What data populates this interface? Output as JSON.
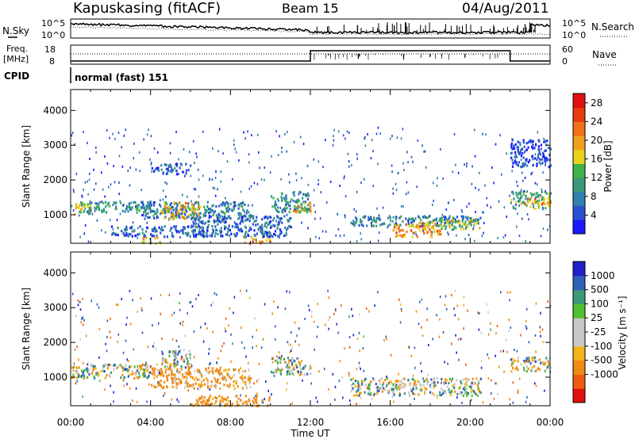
{
  "header": {
    "site": "Kapuskasing (fitACF)",
    "beam": "Beam 15",
    "date": "04/Aug/2011"
  },
  "noise_panel": {
    "left_label": "N.Sky",
    "right_label": "N.Search",
    "left_ticks": [
      "10^5",
      "10^0"
    ],
    "right_ticks": [
      "10^5",
      "10^0"
    ]
  },
  "freq_panel": {
    "left_label_1": "Freq.",
    "left_label_2": "[MHz]",
    "right_label": "Nave",
    "left_ticks": [
      "18",
      "8"
    ],
    "right_ticks": [
      "60",
      "0"
    ]
  },
  "cpid": {
    "label": "CPID",
    "mode": "normal (fast) 151"
  },
  "colors": {
    "power_scale": [
      "#1a1aff",
      "#2a4fd0",
      "#2f7fb0",
      "#3a9a7a",
      "#3fb24a",
      "#e8d21a",
      "#f0a020",
      "#f07018",
      "#e83c10",
      "#e01010"
    ],
    "velocity_scale": [
      "#e01010",
      "#ee5a10",
      "#f08a14",
      "#f2b41a",
      "#c8c8c8",
      "#c8c8c8",
      "#50c030",
      "#3a9a7a",
      "#2f5fb8",
      "#2020c8"
    ]
  },
  "chart_data": [
    {
      "type": "heatmap",
      "parameter": "Power",
      "ylabel": "Slant Range [km]",
      "xlabel": "Time UT",
      "x_ticks": [
        "00:00",
        "04:00",
        "08:00",
        "12:00",
        "16:00",
        "20:00",
        "00:00"
      ],
      "y_ticks": [
        "1000",
        "2000",
        "3000",
        "4000"
      ],
      "xlim": [
        0,
        24
      ],
      "ylim": [
        180,
        4600
      ],
      "colorbar": {
        "label": "Power [dB]",
        "ticks": [
          "4",
          "8",
          "12",
          "16",
          "20",
          "24",
          "28"
        ],
        "range": [
          0,
          30
        ]
      },
      "regions": [
        {
          "t0": 0.0,
          "t1": 1.0,
          "r0": 1000,
          "r1": 1400,
          "level": 16
        },
        {
          "t0": 0.5,
          "t1": 4.0,
          "r0": 1100,
          "r1": 1400,
          "level": 10
        },
        {
          "t0": 3.5,
          "t1": 9.0,
          "r0": 900,
          "r1": 1400,
          "level": 8
        },
        {
          "t0": 4.5,
          "t1": 6.5,
          "r0": 900,
          "r1": 1400,
          "level": 18
        },
        {
          "t0": 2.0,
          "t1": 7.5,
          "r0": 400,
          "r1": 700,
          "level": 6
        },
        {
          "t0": 3.5,
          "t1": 4.5,
          "r0": 200,
          "r1": 400,
          "level": 18
        },
        {
          "t0": 8.5,
          "t1": 10.0,
          "r0": 200,
          "r1": 400,
          "level": 22
        },
        {
          "t0": 6.0,
          "t1": 11.0,
          "r0": 400,
          "r1": 1000,
          "level": 6
        },
        {
          "t0": 10.0,
          "t1": 12.0,
          "r0": 1100,
          "r1": 1700,
          "level": 10
        },
        {
          "t0": 11.0,
          "t1": 12.0,
          "r0": 1100,
          "r1": 1400,
          "level": 18
        },
        {
          "t0": 4.0,
          "t1": 6.0,
          "r0": 2200,
          "r1": 2500,
          "level": 5
        },
        {
          "t0": 14.0,
          "t1": 20.5,
          "r0": 700,
          "r1": 1000,
          "level": 8
        },
        {
          "t0": 16.0,
          "t1": 18.5,
          "r0": 400,
          "r1": 800,
          "level": 20
        },
        {
          "t0": 18.0,
          "t1": 20.5,
          "r0": 600,
          "r1": 900,
          "level": 14
        },
        {
          "t0": 22.0,
          "t1": 24.0,
          "r0": 1200,
          "r1": 1700,
          "level": 12
        },
        {
          "t0": 22.5,
          "t1": 24.0,
          "r0": 1300,
          "r1": 1500,
          "level": 20
        },
        {
          "t0": 22.0,
          "t1": 24.0,
          "r0": 2400,
          "r1": 3200,
          "level": 4
        }
      ]
    },
    {
      "type": "heatmap",
      "parameter": "Velocity",
      "ylabel": "Slant Range [km]",
      "xlabel": "Time UT",
      "x_ticks": [
        "00:00",
        "04:00",
        "08:00",
        "12:00",
        "16:00",
        "20:00",
        "00:00"
      ],
      "y_ticks": [
        "1000",
        "2000",
        "3000",
        "4000"
      ],
      "xlim": [
        0,
        24
      ],
      "ylim": [
        180,
        4600
      ],
      "colorbar": {
        "label": "Velocity [m s⁻¹]",
        "ticks": [
          "1000",
          "500",
          "100",
          "25",
          "-25",
          "-100",
          "-500",
          "-1000"
        ]
      },
      "regions": [
        {
          "t0": 0.0,
          "t1": 4.0,
          "r0": 1000,
          "r1": 1400,
          "vel": 0
        },
        {
          "t0": 4.0,
          "t1": 9.0,
          "r0": 700,
          "r1": 1300,
          "vel": -150
        },
        {
          "t0": 4.5,
          "t1": 6.0,
          "r0": 1300,
          "r1": 1800,
          "vel": 0
        },
        {
          "t0": 6.0,
          "t1": 10.0,
          "r0": 200,
          "r1": 500,
          "vel": -200
        },
        {
          "t0": 10.0,
          "t1": 12.0,
          "r0": 1100,
          "r1": 1600,
          "vel": 0
        },
        {
          "t0": 14.0,
          "t1": 20.5,
          "r0": 500,
          "r1": 1000,
          "vel": 0
        },
        {
          "t0": 22.0,
          "t1": 24.0,
          "r0": 1200,
          "r1": 1600,
          "vel": 0
        }
      ]
    }
  ]
}
